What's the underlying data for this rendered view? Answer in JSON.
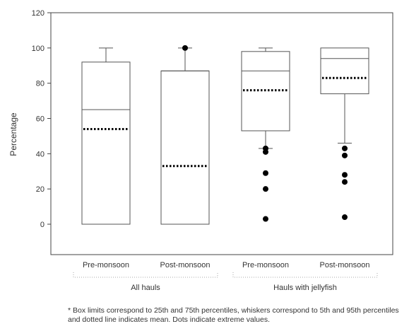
{
  "chart_data": {
    "type": "box",
    "ylabel": "Percentage",
    "xlabel": "",
    "ylim": [
      0,
      120
    ],
    "yticks": [
      0,
      20,
      40,
      60,
      80,
      100,
      120
    ],
    "grid": false,
    "groups": [
      {
        "label": "All hauls",
        "categories": [
          "Pre-monsoon",
          "Post-monsoon"
        ]
      },
      {
        "label": "Hauls with jellyfish",
        "categories": [
          "Pre-monsoon",
          "Post-monsoon"
        ]
      }
    ],
    "boxes": [
      {
        "category": "Pre-monsoon",
        "group": "All hauls",
        "p5": 0,
        "p25": 0,
        "median": 65,
        "p75": 92,
        "p95": 100,
        "mean": 54,
        "outliers": []
      },
      {
        "category": "Post-monsoon",
        "group": "All hauls",
        "p5": 0,
        "p25": 0,
        "median": 87,
        "p75": 87,
        "p95": 100,
        "mean": 33,
        "outliers": [
          100
        ]
      },
      {
        "category": "Pre-monsoon",
        "group": "Hauls with jellyfish",
        "p5": 43,
        "p25": 53,
        "median": 87,
        "p75": 98,
        "p95": 100,
        "mean": 76,
        "outliers": [
          43,
          41,
          29,
          20,
          3
        ]
      },
      {
        "category": "Post-monsoon",
        "group": "Hauls with jellyfish",
        "p5": 46,
        "p25": 74,
        "median": 94,
        "p75": 100,
        "p95": 100,
        "mean": 83,
        "outliers": [
          43,
          39,
          28,
          24,
          4
        ]
      }
    ]
  },
  "footnote": "* Box limits correspond to 25th and 75th percentiles, whiskers correspond to 5th and 95th percentiles and dotted line indicates mean. Dots indicate extreme values."
}
